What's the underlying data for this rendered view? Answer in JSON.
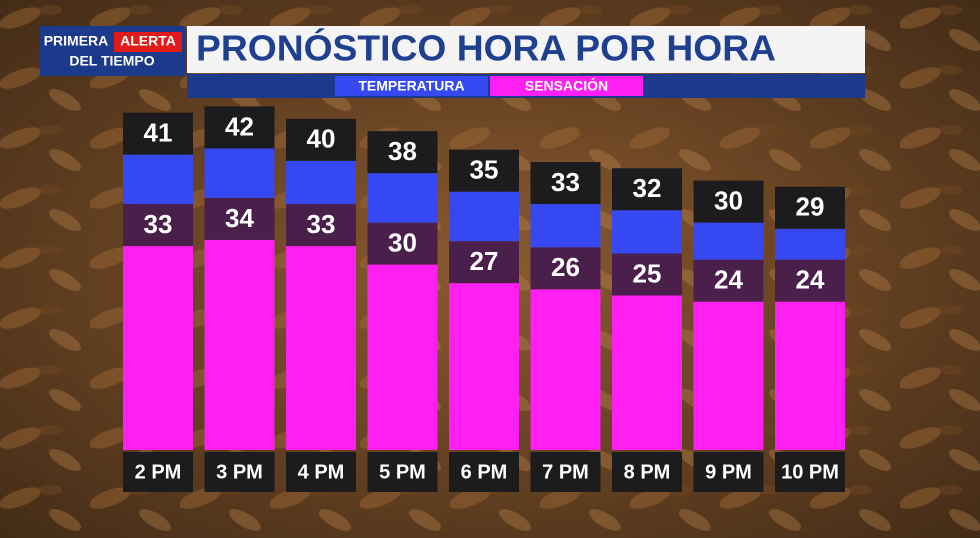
{
  "chart_data": {
    "type": "bar",
    "title": "PRONÓSTICO HORA POR HORA",
    "logo": {
      "first": "PRIMERA",
      "second": "ALERTA",
      "third": "DEL TIEMPO"
    },
    "categories": [
      "2 PM",
      "3 PM",
      "4 PM",
      "5 PM",
      "6 PM",
      "7 PM",
      "8 PM",
      "9 PM",
      "10 PM"
    ],
    "series": [
      {
        "name": "TEMPERATURA",
        "color": "#3548f2",
        "values": [
          41,
          42,
          40,
          38,
          35,
          33,
          32,
          30,
          29
        ]
      },
      {
        "name": "SENSACIÓN",
        "color": "#ff1ff2",
        "values": [
          33,
          34,
          33,
          30,
          27,
          26,
          25,
          24,
          24
        ]
      }
    ]
  }
}
